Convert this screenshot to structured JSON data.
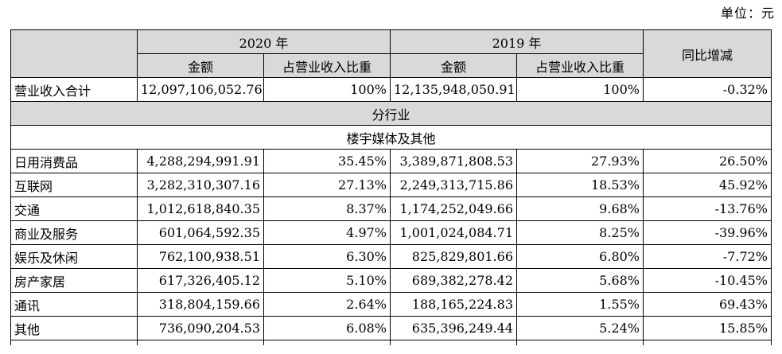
{
  "unit_label": "单位：元",
  "header": {
    "year_2020": "2020 年",
    "year_2019": "2019 年",
    "yoy": "同比增减",
    "amount": "金额",
    "ratio": "占营业收入比重"
  },
  "total": {
    "label": "营业收入合计",
    "amount_2020": "12,097,106,052.76",
    "ratio_2020": "100%",
    "amount_2019": "12,135,948,050.91",
    "ratio_2019": "100%",
    "yoy": "-0.32%"
  },
  "section_title": "分行业",
  "subsection_title": "楼宇媒体及其他",
  "rows": [
    {
      "label": "日用消费品",
      "amount_2020": "4,288,294,991.91",
      "ratio_2020": "35.45%",
      "amount_2019": "3,389,871,808.53",
      "ratio_2019": "27.93%",
      "yoy": "26.50%"
    },
    {
      "label": "互联网",
      "amount_2020": "3,282,310,307.16",
      "ratio_2020": "27.13%",
      "amount_2019": "2,249,313,715.86",
      "ratio_2019": "18.53%",
      "yoy": "45.92%"
    },
    {
      "label": "交通",
      "amount_2020": "1,012,618,840.35",
      "ratio_2020": "8.37%",
      "amount_2019": "1,174,252,049.66",
      "ratio_2019": "9.68%",
      "yoy": "-13.76%"
    },
    {
      "label": "商业及服务",
      "amount_2020": "601,064,592.35",
      "ratio_2020": "4.97%",
      "amount_2019": "1,001,024,084.71",
      "ratio_2019": "8.25%",
      "yoy": "-39.96%"
    },
    {
      "label": "娱乐及休闲",
      "amount_2020": "762,100,938.51",
      "ratio_2020": "6.30%",
      "amount_2019": "825,829,801.66",
      "ratio_2019": "6.80%",
      "yoy": "-7.72%"
    },
    {
      "label": "房产家居",
      "amount_2020": "617,326,405.12",
      "ratio_2020": "5.10%",
      "amount_2019": "689,382,278.42",
      "ratio_2019": "5.68%",
      "yoy": "-10.45%"
    },
    {
      "label": "通讯",
      "amount_2020": "318,804,159.66",
      "ratio_2020": "2.64%",
      "amount_2019": "188,165,224.83",
      "ratio_2019": "1.55%",
      "yoy": "69.43%"
    },
    {
      "label": "其他",
      "amount_2020": "736,090,204.53",
      "ratio_2020": "6.08%",
      "amount_2019": "635,396,249.44",
      "ratio_2019": "5.24%",
      "yoy": "15.85%"
    }
  ]
}
